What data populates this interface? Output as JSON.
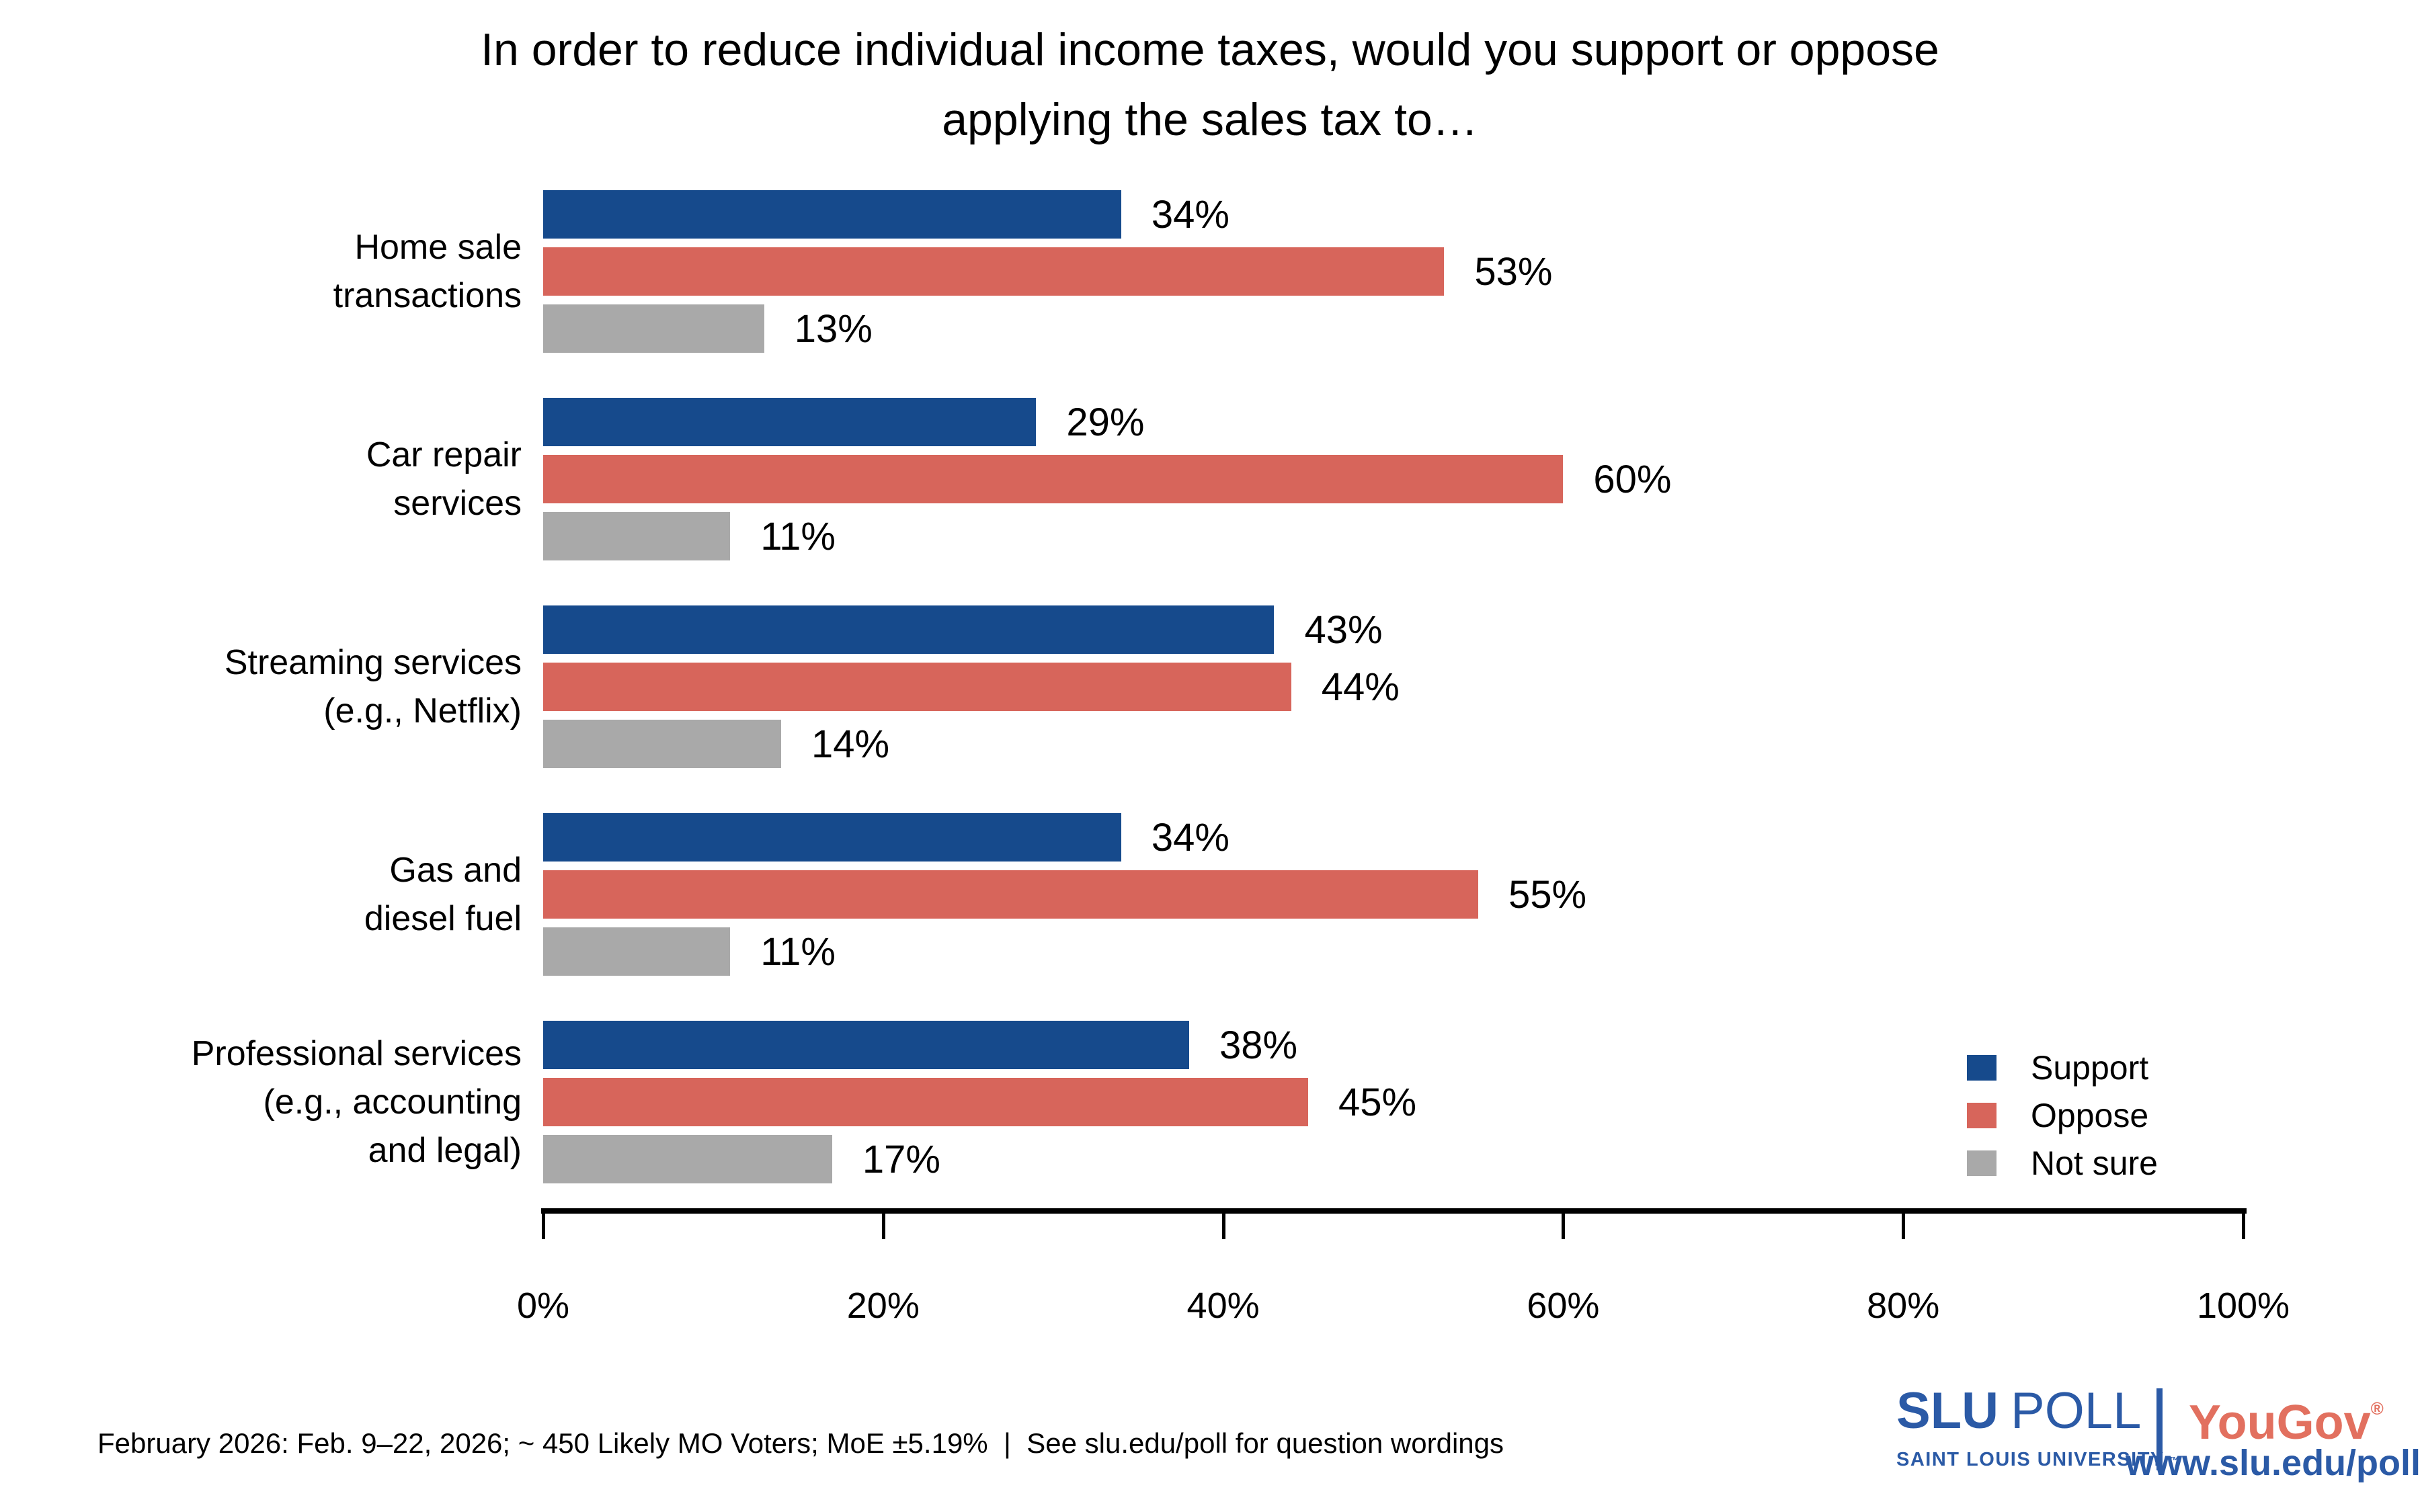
{
  "title": {
    "line1": "In order to reduce individual income taxes, would you support or oppose",
    "line2": "applying the sales tax to…"
  },
  "chart_data": {
    "type": "bar",
    "orientation": "horizontal",
    "title": "In order to reduce individual income taxes, would you support or oppose applying the sales tax to…",
    "categories": [
      "Home sale\ntransactions",
      "Car repair\nservices",
      "Streaming services\n(e.g., Netflix)",
      "Gas and\ndiesel fuel",
      "Professional services\n(e.g., accounting\nand legal)"
    ],
    "series": [
      {
        "name": "Support",
        "color": "#164A8C",
        "values": [
          34,
          29,
          43,
          34,
          38
        ]
      },
      {
        "name": "Oppose",
        "color": "#D7655B",
        "values": [
          53,
          60,
          44,
          55,
          45
        ]
      },
      {
        "name": "Not sure",
        "color": "#A9A9A9",
        "values": [
          13,
          11,
          14,
          11,
          17
        ]
      }
    ],
    "value_suffix": "%",
    "xlabel": "",
    "ylabel": "",
    "xlim": [
      0,
      100
    ],
    "x_ticks": [
      "0%",
      "20%",
      "40%",
      "60%",
      "80%",
      "100%"
    ],
    "x_tick_values": [
      0,
      20,
      40,
      60,
      80,
      100
    ],
    "grid": false,
    "data_labels": true,
    "legend_position": "right-bottom",
    "text_color": "#000000"
  },
  "footer": {
    "text": "February 2026: Feb. 9–22, 2026; ~ 450 Likely MO Voters; MoE ±5.19%  |  See slu.edu/poll for question wordings"
  },
  "branding": {
    "slu": "SLU",
    "poll": "POLL",
    "university": "SAINT LOUIS UNIVERSITY.",
    "tm": "™",
    "yougov": "YouGov",
    "registered": "®",
    "url": "www.slu.edu/poll",
    "slu_blue": "#2B5AA6",
    "yougov_red": "#E2705F"
  }
}
